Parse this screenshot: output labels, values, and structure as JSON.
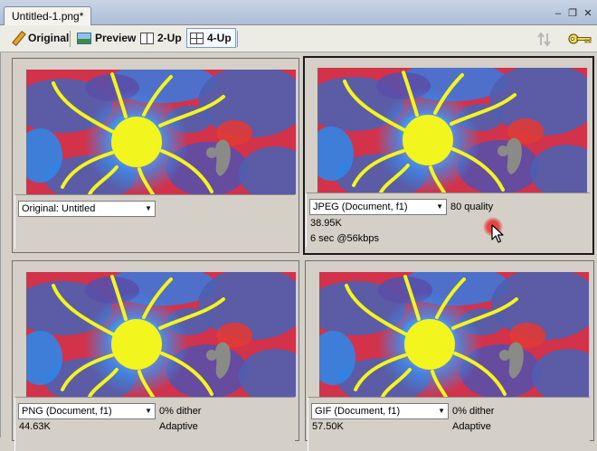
{
  "document": {
    "tab_title": "Untitled-1.png*"
  },
  "window_controls": {
    "minimize": "–",
    "restore": "❐",
    "close": "✕"
  },
  "toolbar": {
    "original": "Original",
    "preview": "Preview",
    "two_up": "2-Up",
    "four_up": "4-Up",
    "export_icon": "export-arrows-icon",
    "key_icon": "key-icon"
  },
  "panes": [
    {
      "format": "Original: Untitled",
      "line1": "",
      "line2": "",
      "extra1": "",
      "extra2": ""
    },
    {
      "format": "JPEG (Document, f1)",
      "line1": "38.95K",
      "line2": "6 sec @56kbps",
      "extra1": "80 quality",
      "extra2": ""
    },
    {
      "format": "PNG (Document, f1)",
      "line1": "44.63K",
      "line2": "",
      "extra1": "0% dither",
      "extra2": "Adaptive"
    },
    {
      "format": "GIF (Document, f1)",
      "line1": "57.50K",
      "line2": "",
      "extra1": "0% dither",
      "extra2": "Adaptive"
    }
  ],
  "colors": {
    "background_red": "#d2324a",
    "background_blue": "#4e5fb0",
    "sun_yellow": "#f2f51e",
    "glow_blue": "#3b8ff0"
  }
}
